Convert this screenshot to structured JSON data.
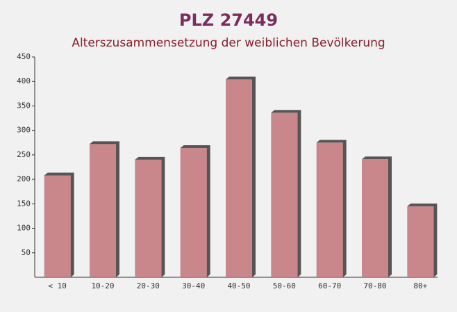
{
  "chart_data": {
    "type": "bar",
    "title": "PLZ 27449",
    "subtitle": "Alterszusammensetzung der weiblichen Bevölkerung",
    "categories": [
      "< 10",
      "10-20",
      "20-30",
      "30-40",
      "40-50",
      "50-60",
      "60-70",
      "70-80",
      "80+"
    ],
    "values": [
      208,
      272,
      240,
      264,
      404,
      336,
      275,
      241,
      145
    ],
    "color": "#c47a80",
    "ylim": [
      0,
      450
    ],
    "yticks": [
      50,
      100,
      150,
      200,
      250,
      300,
      350,
      400,
      450
    ]
  }
}
